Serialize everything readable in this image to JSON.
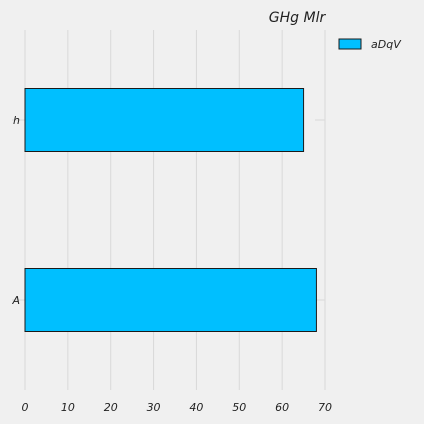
{
  "chart_data": {
    "type": "bar",
    "orientation": "horizontal",
    "title": "GHg  Mlr",
    "xlabel": "",
    "ylabel": "",
    "categories": [
      "A",
      "h"
    ],
    "series": [
      {
        "name": "aDqV",
        "values": [
          68,
          65
        ],
        "color": "#00bfff"
      }
    ],
    "xlim": [
      0,
      70
    ],
    "xticks": [
      0,
      10,
      20,
      30,
      40,
      50,
      60,
      70
    ],
    "grid": true,
    "legend_position": "top-right"
  },
  "colors": {
    "background": "#f0f0f0",
    "grid": "#d9d9d9",
    "bar_edge": "#1a1a1a",
    "text": "#222222"
  }
}
